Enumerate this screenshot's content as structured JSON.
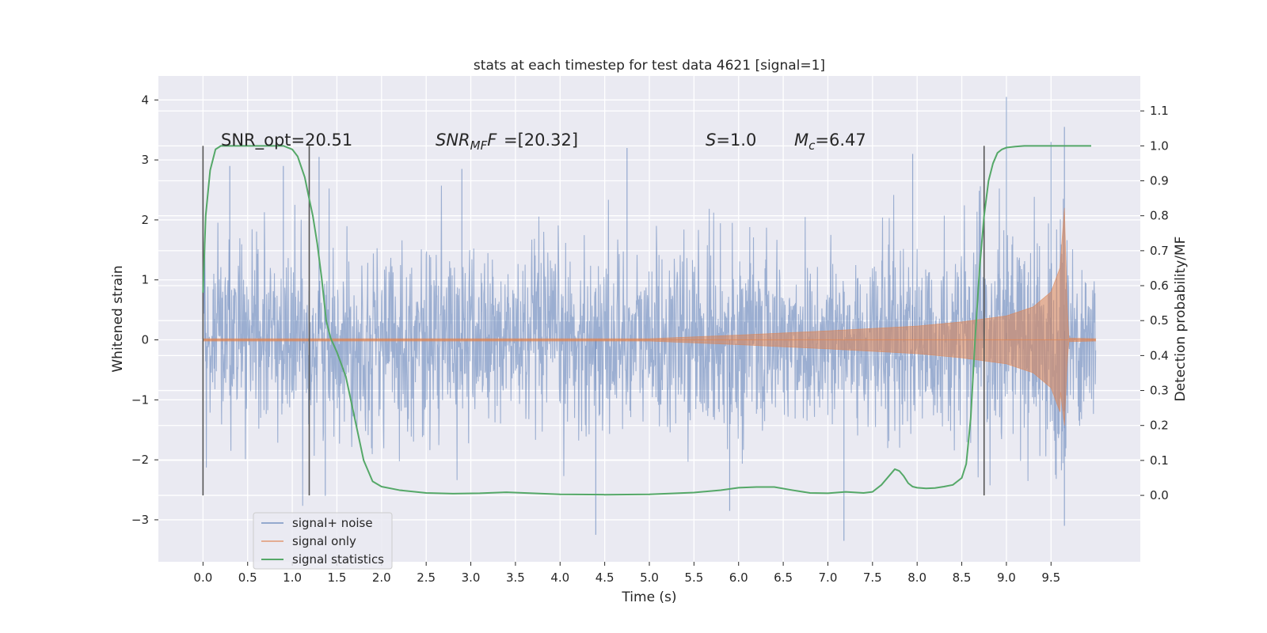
{
  "chart_data": {
    "type": "line",
    "title": "stats at each timestep for test data 4621 [signal=1]",
    "xlabel": "Time (s)",
    "ylabel": "Whitened strain",
    "y2label": "Detection probability/MF",
    "xlim": [
      -0.5,
      10.5
    ],
    "ylim": [
      -3.7,
      4.4
    ],
    "y2lim": [
      -0.19,
      1.2
    ],
    "x_ticks": [
      "0.0",
      "0.5",
      "1.0",
      "1.5",
      "2.0",
      "2.5",
      "3.0",
      "3.5",
      "4.0",
      "4.5",
      "5.0",
      "5.5",
      "6.0",
      "6.5",
      "7.0",
      "7.5",
      "8.0",
      "8.5",
      "9.0",
      "9.5"
    ],
    "y_ticks": [
      "4",
      "3",
      "2",
      "1",
      "0",
      "−1",
      "−2",
      "−3"
    ],
    "y2_ticks": [
      "1.1",
      "1.0",
      "0.9",
      "0.8",
      "0.7",
      "0.6",
      "0.5",
      "0.4",
      "0.3",
      "0.2",
      "0.1",
      "0.0"
    ],
    "grid": true,
    "legend_placement": "lower-left",
    "annotations": {
      "snr_opt": "SNR_opt=20.51",
      "snr_mf_sym": "SNR",
      "snr_mf_sub": "MF",
      "snr_mf_val": "=[20.32]",
      "s_sym": "S",
      "s_val": "=1.0",
      "mc_sym": "M",
      "mc_sub": "c",
      "mc_val": "=6.47"
    },
    "vertical_lines": [
      {
        "x": 0.0,
        "y2_range": [
          0.0,
          1.0
        ]
      },
      {
        "x": 1.19,
        "y2_range": [
          0.0,
          1.0
        ]
      },
      {
        "x": 8.75,
        "y2_range": [
          0.0,
          1.0
        ]
      }
    ],
    "series": [
      {
        "name": "signal+ noise",
        "axis": "left",
        "color": "#4c72b0",
        "envelope_x": [
          0,
          1,
          2,
          3,
          4,
          5,
          6,
          7,
          8,
          9,
          10
        ],
        "typical_amplitude": 1.4,
        "peak_samples": [
          {
            "x": 0.02,
            "y": 1.7
          },
          {
            "x": 0.3,
            "y": 2.9
          },
          {
            "x": 0.9,
            "y": 2.9
          },
          {
            "x": 1.3,
            "y": 3.05
          },
          {
            "x": 1.37,
            "y": -2.6
          },
          {
            "x": 2.9,
            "y": 2.85
          },
          {
            "x": 4.4,
            "y": -3.25
          },
          {
            "x": 4.75,
            "y": 3.2
          },
          {
            "x": 5.9,
            "y": -2.85
          },
          {
            "x": 7.18,
            "y": -3.35
          },
          {
            "x": 7.95,
            "y": 3.1
          },
          {
            "x": 9.0,
            "y": 4.05
          },
          {
            "x": 9.5,
            "y": 3.3
          },
          {
            "x": 9.65,
            "y": 3.55
          },
          {
            "x": 9.65,
            "y": -3.1
          }
        ]
      },
      {
        "name": "signal only",
        "axis": "left",
        "color": "#dd8452",
        "envelope_x": [
          0,
          5.0,
          6.0,
          7.0,
          8.0,
          8.5,
          9.0,
          9.3,
          9.5,
          9.6,
          9.65,
          9.68,
          9.7,
          10.0
        ],
        "envelope_amplitude": [
          0.02,
          0.02,
          0.08,
          0.15,
          0.23,
          0.3,
          0.4,
          0.55,
          0.8,
          1.2,
          2.2,
          0.6,
          0.03,
          0.02
        ]
      },
      {
        "name": "signal statistics",
        "axis": "right",
        "color": "#55a868",
        "x": [
          0.0,
          0.03,
          0.08,
          0.14,
          0.2,
          0.3,
          0.5,
          0.7,
          0.9,
          1.0,
          1.06,
          1.1,
          1.14,
          1.18,
          1.23,
          1.28,
          1.33,
          1.38,
          1.43,
          1.5,
          1.6,
          1.7,
          1.8,
          1.9,
          2.0,
          2.2,
          2.5,
          2.8,
          3.1,
          3.4,
          3.6,
          4.0,
          4.5,
          5.0,
          5.5,
          5.8,
          6.0,
          6.2,
          6.4,
          6.6,
          6.8,
          7.0,
          7.2,
          7.4,
          7.5,
          7.6,
          7.7,
          7.75,
          7.8,
          7.85,
          7.9,
          7.95,
          8.0,
          8.1,
          8.2,
          8.3,
          8.4,
          8.5,
          8.55,
          8.6,
          8.65,
          8.7,
          8.75,
          8.8,
          8.85,
          8.9,
          8.95,
          9.0,
          9.1,
          9.2,
          9.3,
          9.4,
          9.5,
          9.7,
          9.95
        ],
        "y": [
          0.58,
          0.8,
          0.93,
          0.99,
          1.0,
          1.0,
          1.0,
          1.0,
          1.0,
          0.99,
          0.97,
          0.94,
          0.91,
          0.86,
          0.8,
          0.72,
          0.62,
          0.5,
          0.45,
          0.41,
          0.34,
          0.22,
          0.1,
          0.04,
          0.025,
          0.015,
          0.007,
          0.005,
          0.006,
          0.009,
          0.007,
          0.003,
          0.002,
          0.003,
          0.008,
          0.015,
          0.022,
          0.024,
          0.024,
          0.015,
          0.007,
          0.006,
          0.01,
          0.007,
          0.01,
          0.03,
          0.06,
          0.075,
          0.07,
          0.055,
          0.035,
          0.025,
          0.022,
          0.02,
          0.021,
          0.025,
          0.03,
          0.05,
          0.09,
          0.22,
          0.45,
          0.65,
          0.8,
          0.9,
          0.95,
          0.98,
          0.99,
          0.995,
          0.998,
          1.0,
          1.0,
          1.0,
          1.0,
          1.0,
          1.0
        ]
      }
    ]
  }
}
